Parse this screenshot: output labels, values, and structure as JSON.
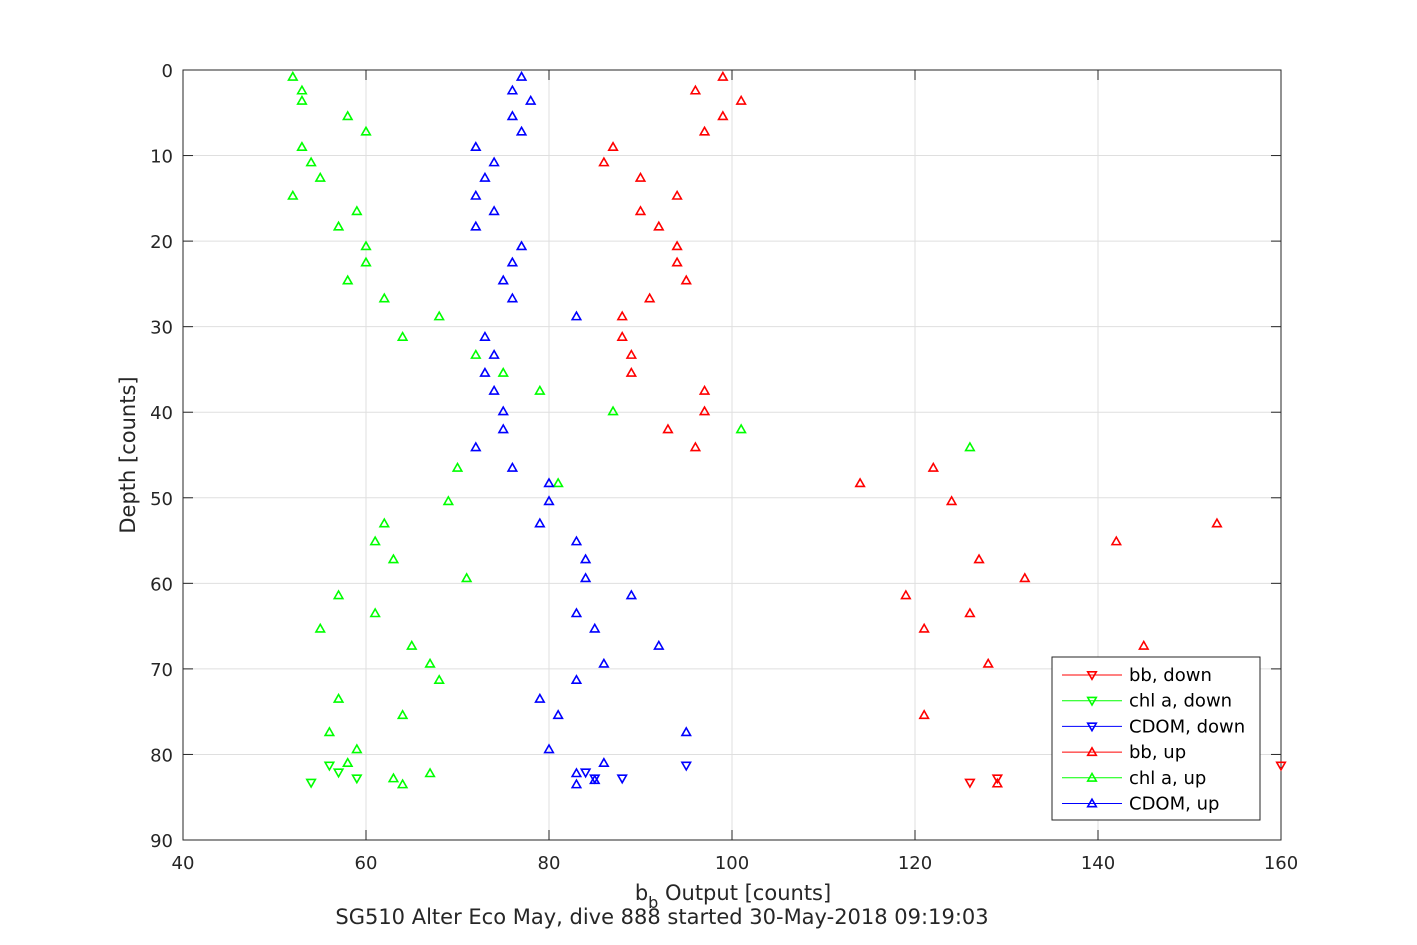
{
  "chart_data": {
    "type": "scatter",
    "xlabel_main": "b",
    "xlabel_sub": "b",
    "xlabel_rest": " Output [counts]",
    "ylabel": "Depth [counts]",
    "caption": "SG510 Alter Eco May, dive 888 started 30-May-2018 09:19:03",
    "xlim": [
      40,
      160
    ],
    "ylim": [
      0,
      90
    ],
    "y_reversed": true,
    "grid": true,
    "legend_position": "bottom-right",
    "xticks": [
      "40",
      "60",
      "80",
      "100",
      "120",
      "140",
      "160"
    ],
    "yticks": [
      "0",
      "10",
      "20",
      "30",
      "40",
      "50",
      "60",
      "70",
      "80",
      "90"
    ],
    "series": [
      {
        "name": "bb, down",
        "color": "#ff0000",
        "marker": "down",
        "points": [
          [
            126,
            83.3
          ],
          [
            129,
            82.8
          ],
          [
            160,
            81.3
          ]
        ]
      },
      {
        "name": "chl a, down",
        "color": "#00ff00",
        "marker": "down",
        "points": [
          [
            54,
            83.3
          ],
          [
            57,
            82.1
          ],
          [
            59,
            82.8
          ],
          [
            56,
            81.3
          ]
        ]
      },
      {
        "name": "CDOM, down",
        "color": "#0000ff",
        "marker": "down",
        "points": [
          [
            84,
            82.1
          ],
          [
            85,
            82.8
          ],
          [
            88,
            82.8
          ],
          [
            95,
            81.3
          ]
        ]
      },
      {
        "name": "bb, up",
        "color": "#ff0000",
        "marker": "up",
        "points": [
          [
            99,
            0.8
          ],
          [
            96,
            2.4
          ],
          [
            101,
            3.6
          ],
          [
            99,
            5.4
          ],
          [
            97,
            7.2
          ],
          [
            87,
            9
          ],
          [
            86,
            10.8
          ],
          [
            90,
            12.6
          ],
          [
            94,
            14.7
          ],
          [
            90,
            16.5
          ],
          [
            92,
            18.3
          ],
          [
            94,
            20.6
          ],
          [
            94,
            22.5
          ],
          [
            95,
            24.6
          ],
          [
            91,
            26.7
          ],
          [
            88,
            28.8
          ],
          [
            88,
            31.2
          ],
          [
            89,
            33.3
          ],
          [
            89,
            35.4
          ],
          [
            97,
            37.5
          ],
          [
            97,
            39.9
          ],
          [
            93,
            42
          ],
          [
            96,
            44.1
          ],
          [
            122,
            46.5
          ],
          [
            114,
            48.3
          ],
          [
            124,
            50.4
          ],
          [
            153,
            53
          ],
          [
            142,
            55.1
          ],
          [
            127,
            57.2
          ],
          [
            132,
            59.4
          ],
          [
            119,
            61.4
          ],
          [
            126,
            63.5
          ],
          [
            121,
            65.3
          ],
          [
            145,
            67.3
          ],
          [
            128,
            69.4
          ],
          [
            121,
            75.4
          ],
          [
            129,
            83.4
          ]
        ]
      },
      {
        "name": "chl a, up",
        "color": "#00ff00",
        "marker": "up",
        "points": [
          [
            52,
            0.8
          ],
          [
            53,
            2.4
          ],
          [
            53,
            3.6
          ],
          [
            58,
            5.4
          ],
          [
            60,
            7.2
          ],
          [
            53,
            9
          ],
          [
            54,
            10.8
          ],
          [
            55,
            12.6
          ],
          [
            52,
            14.7
          ],
          [
            59,
            16.5
          ],
          [
            57,
            18.3
          ],
          [
            60,
            20.6
          ],
          [
            60,
            22.5
          ],
          [
            58,
            24.6
          ],
          [
            62,
            26.7
          ],
          [
            68,
            28.8
          ],
          [
            64,
            31.2
          ],
          [
            72,
            33.3
          ],
          [
            75,
            35.4
          ],
          [
            79,
            37.5
          ],
          [
            87,
            39.9
          ],
          [
            101,
            42
          ],
          [
            126,
            44.1
          ],
          [
            70,
            46.5
          ],
          [
            81,
            48.3
          ],
          [
            69,
            50.4
          ],
          [
            62,
            53
          ],
          [
            61,
            55.1
          ],
          [
            63,
            57.2
          ],
          [
            71,
            59.4
          ],
          [
            57,
            61.4
          ],
          [
            61,
            63.5
          ],
          [
            55,
            65.3
          ],
          [
            65,
            67.3
          ],
          [
            67,
            69.4
          ],
          [
            68,
            71.3
          ],
          [
            57,
            73.5
          ],
          [
            64,
            75.4
          ],
          [
            56,
            77.4
          ],
          [
            59,
            79.4
          ],
          [
            58,
            81
          ],
          [
            67,
            82.2
          ],
          [
            63,
            82.8
          ],
          [
            64,
            83.5
          ]
        ]
      },
      {
        "name": "CDOM, up",
        "color": "#0000ff",
        "marker": "up",
        "points": [
          [
            77,
            0.8
          ],
          [
            76,
            2.4
          ],
          [
            78,
            3.6
          ],
          [
            76,
            5.4
          ],
          [
            77,
            7.2
          ],
          [
            72,
            9
          ],
          [
            74,
            10.8
          ],
          [
            73,
            12.6
          ],
          [
            72,
            14.7
          ],
          [
            74,
            16.5
          ],
          [
            72,
            18.3
          ],
          [
            77,
            20.6
          ],
          [
            76,
            22.5
          ],
          [
            75,
            24.6
          ],
          [
            76,
            26.7
          ],
          [
            83,
            28.8
          ],
          [
            73,
            31.2
          ],
          [
            74,
            33.3
          ],
          [
            73,
            35.4
          ],
          [
            74,
            37.5
          ],
          [
            75,
            39.9
          ],
          [
            75,
            42
          ],
          [
            72,
            44.1
          ],
          [
            76,
            46.5
          ],
          [
            80,
            48.3
          ],
          [
            80,
            50.4
          ],
          [
            79,
            53
          ],
          [
            83,
            55.1
          ],
          [
            84,
            57.2
          ],
          [
            84,
            59.4
          ],
          [
            89,
            61.4
          ],
          [
            83,
            63.5
          ],
          [
            85,
            65.3
          ],
          [
            92,
            67.3
          ],
          [
            86,
            69.4
          ],
          [
            83,
            71.3
          ],
          [
            79,
            73.5
          ],
          [
            81,
            75.4
          ],
          [
            95,
            77.4
          ],
          [
            80,
            79.4
          ],
          [
            86,
            81
          ],
          [
            83,
            82.2
          ],
          [
            85,
            83
          ],
          [
            83,
            83.5
          ]
        ]
      }
    ]
  }
}
